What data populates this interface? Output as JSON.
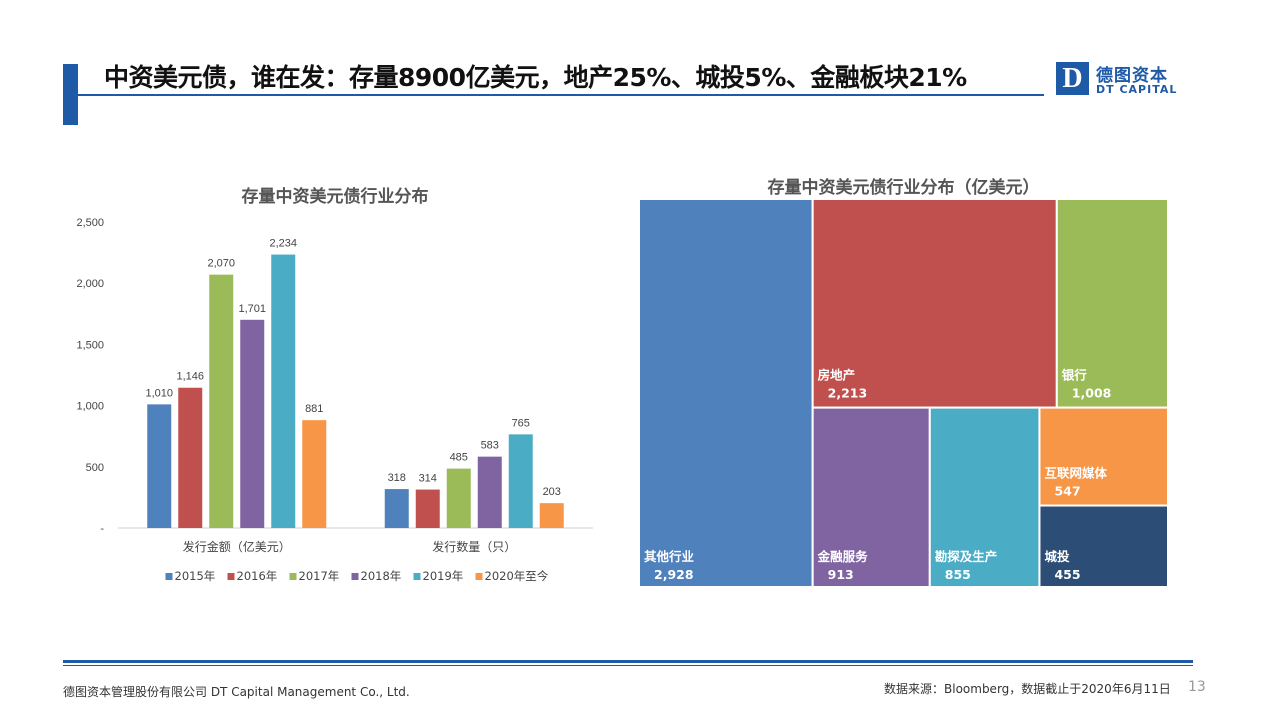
{
  "page": {
    "title": "中资美元债，谁在发：存量8900亿美元，地产25%、城投5%、金融板块21%",
    "logo_mark": "D",
    "logo_cn": "德图资本",
    "logo_en": "DT CAPITAL",
    "footer_left": "德图资本管理股份有限公司  DT Capital Management  Co., Ltd.",
    "footer_right": "数据来源：Bloomberg，数据截止于2020年6月11日",
    "page_number": "13",
    "accent_color": "#1f5aa6"
  },
  "chart_data": [
    {
      "type": "bar",
      "title": "存量中资美元债行业分布",
      "categories": [
        "发行金额（亿美元）",
        "发行数量（只）"
      ],
      "ylim": [
        0,
        2500
      ],
      "yticks": [
        0,
        500,
        1000,
        1500,
        2000,
        2500
      ],
      "ytick_labels": [
        "-",
        "500",
        "1,000",
        "1,500",
        "2,000",
        "2,500"
      ],
      "grid": false,
      "legend_position": "bottom",
      "series": [
        {
          "name": "2015年",
          "color": "#4f81bd",
          "values": [
            1010,
            318
          ],
          "labels": [
            "1,010",
            "318"
          ]
        },
        {
          "name": "2016年",
          "color": "#c0504d",
          "values": [
            1146,
            314
          ],
          "labels": [
            "1,146",
            "314"
          ]
        },
        {
          "name": "2017年",
          "color": "#9bbb59",
          "values": [
            2070,
            485
          ],
          "labels": [
            "2,070",
            "485"
          ]
        },
        {
          "name": "2018年",
          "color": "#8064a2",
          "values": [
            1701,
            583
          ],
          "labels": [
            "1,701",
            "583"
          ]
        },
        {
          "name": "2019年",
          "color": "#4bacc6",
          "values": [
            2234,
            765
          ],
          "labels": [
            "2,234",
            "765"
          ]
        },
        {
          "name": "2020年至今",
          "color": "#f79646",
          "values": [
            881,
            203
          ],
          "labels": [
            "881",
            "203"
          ]
        }
      ]
    },
    {
      "type": "treemap",
      "title": "存量中资美元债行业分布（亿美元）",
      "items": [
        {
          "name": "其他行业",
          "value": 2928,
          "label": "2,928",
          "color": "#4f81bd"
        },
        {
          "name": "房地产",
          "value": 2213,
          "label": "2,213",
          "color": "#c0504d"
        },
        {
          "name": "银行",
          "value": 1008,
          "label": "1,008",
          "color": "#9bbb59"
        },
        {
          "name": "金融服务",
          "value": 913,
          "label": "913",
          "color": "#8064a2"
        },
        {
          "name": "勘探及生产",
          "value": 855,
          "label": "855",
          "color": "#4bacc6"
        },
        {
          "name": "互联网媒体",
          "value": 547,
          "label": "547",
          "color": "#f79646"
        },
        {
          "name": "城投",
          "value": 455,
          "label": "455",
          "color": "#2c4d75"
        }
      ]
    }
  ]
}
